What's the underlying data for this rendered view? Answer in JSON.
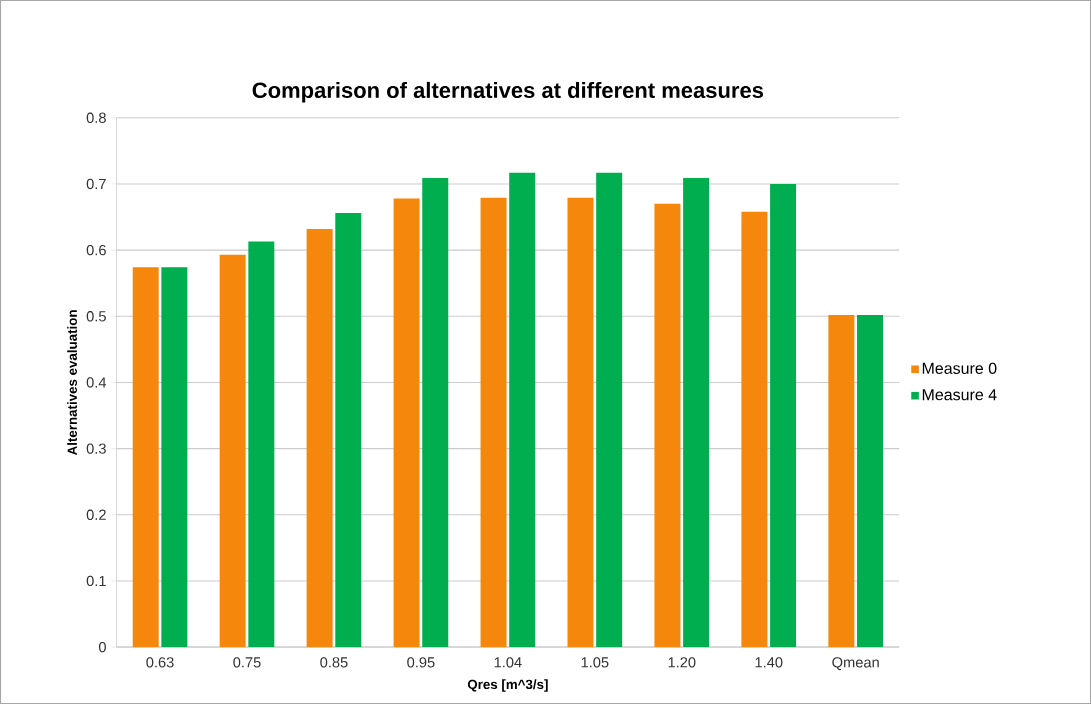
{
  "chart_data": {
    "type": "bar",
    "title": "Comparison of alternatives at different measures",
    "xlabel": "Qres [m^3/s]",
    "ylabel": "Alternatives evaluation",
    "categories": [
      "0.63",
      "0.75",
      "0.85",
      "0.95",
      "1.04",
      "1.05",
      "1.20",
      "1.40",
      "Qmean"
    ],
    "series": [
      {
        "name": "Measure 0",
        "color": "#f5870c",
        "values": [
          0.574,
          0.593,
          0.632,
          0.678,
          0.679,
          0.679,
          0.67,
          0.658,
          0.502
        ]
      },
      {
        "name": "Measure 4",
        "color": "#00ad4f",
        "values": [
          0.574,
          0.613,
          0.656,
          0.709,
          0.717,
          0.717,
          0.709,
          0.7,
          0.502
        ]
      }
    ],
    "ylim": [
      0,
      0.8
    ],
    "yticks": [
      0,
      0.1,
      0.2,
      0.3,
      0.4,
      0.5,
      0.6,
      0.7,
      0.8
    ],
    "grid": "y",
    "legend": "right"
  }
}
